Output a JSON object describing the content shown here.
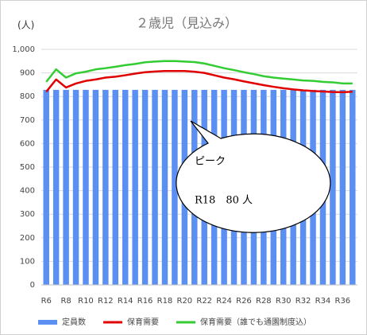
{
  "chart_data": {
    "type": "bar-line",
    "title": "２歳児（見込み）",
    "y_label": "(人)",
    "categories": [
      "R6",
      null,
      "R8",
      null,
      "R10",
      null,
      "R12",
      null,
      "R14",
      null,
      "R16",
      null,
      "R18",
      null,
      "R20",
      null,
      "R22",
      null,
      "R24",
      null,
      "R26",
      null,
      "R28",
      null,
      "R30",
      null,
      "R32",
      null,
      "R34",
      null,
      "R36",
      null
    ],
    "series": [
      {
        "name": "定員数",
        "kind": "bar",
        "color": "#5b8ff2",
        "values": [
          828,
          828,
          828,
          828,
          828,
          828,
          828,
          828,
          828,
          828,
          828,
          828,
          828,
          828,
          828,
          828,
          828,
          828,
          828,
          828,
          828,
          828,
          828,
          828,
          828,
          828,
          828,
          828,
          828,
          828,
          828,
          828
        ]
      },
      {
        "name": "保育需要",
        "kind": "line",
        "color": "#e00000",
        "values": [
          820,
          872,
          838,
          855,
          866,
          872,
          880,
          884,
          890,
          897,
          903,
          906,
          908,
          908,
          908,
          905,
          900,
          890,
          880,
          873,
          864,
          856,
          848,
          841,
          835,
          830,
          826,
          823,
          821,
          819,
          818,
          820
        ]
      },
      {
        "name": "保育需要（誰でも通園制度込）",
        "kind": "line",
        "color": "#33cc33",
        "values": [
          862,
          915,
          880,
          898,
          905,
          915,
          920,
          926,
          933,
          938,
          945,
          948,
          950,
          950,
          948,
          946,
          940,
          930,
          920,
          912,
          903,
          895,
          886,
          880,
          876,
          872,
          868,
          866,
          862,
          860,
          855,
          855
        ]
      }
    ],
    "ylim": [
      0,
      1000
    ],
    "yticks": [
      0,
      100,
      200,
      300,
      400,
      500,
      600,
      700,
      800,
      900,
      {
        "value": 1000,
        "label": "1,000"
      }
    ],
    "annotation": [
      "ピーク",
      "R18　80 人"
    ]
  }
}
